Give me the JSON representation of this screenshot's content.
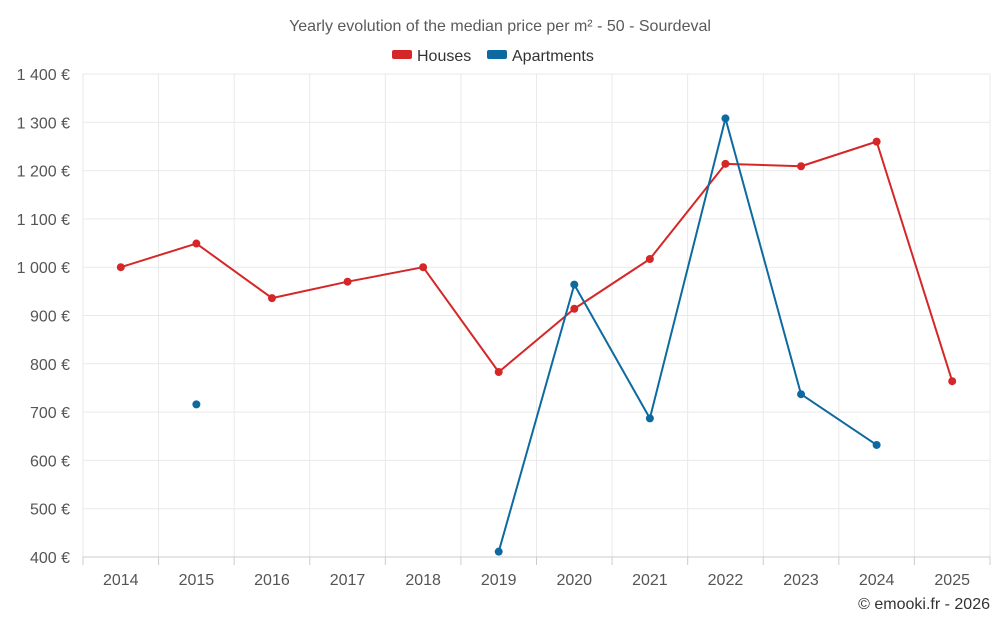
{
  "chart_data": {
    "type": "line",
    "title": "Yearly evolution of the median price per m² - 50 - Sourdeval",
    "categories": [
      "2014",
      "2015",
      "2016",
      "2017",
      "2018",
      "2019",
      "2020",
      "2021",
      "2022",
      "2023",
      "2024",
      "2025"
    ],
    "series": [
      {
        "name": "Houses",
        "color": "#d62728",
        "values": [
          1000,
          1049,
          936,
          970,
          1000,
          783,
          914,
          1017,
          1214,
          1209,
          1260,
          764
        ]
      },
      {
        "name": "Apartments",
        "color": "#0d6aa0",
        "values": [
          null,
          716,
          null,
          null,
          null,
          411,
          964,
          687,
          1308,
          737,
          632,
          null
        ]
      }
    ],
    "ylim": [
      400,
      1400
    ],
    "yticks": [
      400,
      500,
      600,
      700,
      800,
      900,
      1000,
      1100,
      1200,
      1300,
      1400
    ],
    "ytick_labels": [
      "400 €",
      "500 €",
      "600 €",
      "700 €",
      "800 €",
      "900 €",
      "1 000 €",
      "1 100 €",
      "1 200 €",
      "1 300 €",
      "1 400 €"
    ],
    "legend_position": "top-center",
    "grid": true,
    "credit": "© emooki.fr - 2026"
  }
}
